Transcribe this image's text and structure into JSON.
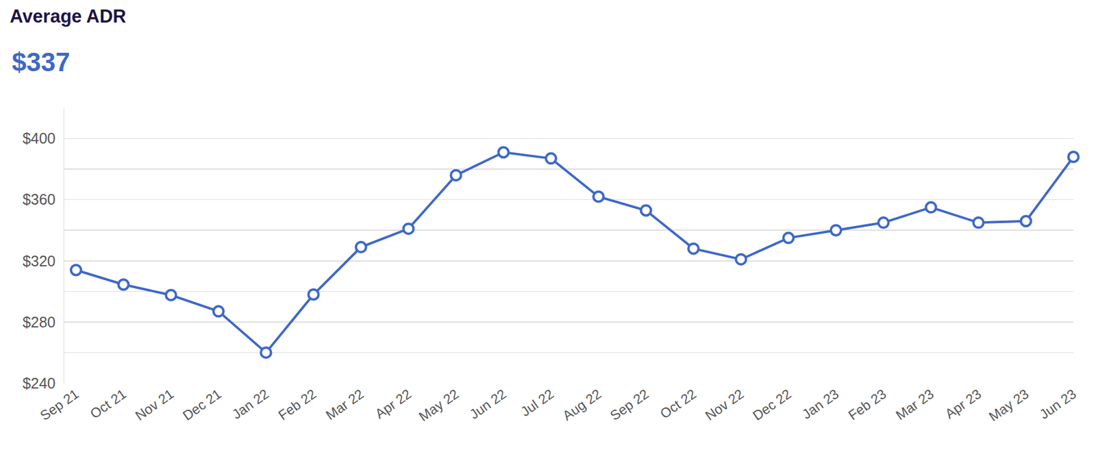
{
  "chart_data": {
    "type": "line",
    "title": "Average ADR",
    "subtitle": "$337",
    "categories": [
      "Sep 21",
      "Oct 21",
      "Nov 21",
      "Dec 21",
      "Jan 22",
      "Feb 22",
      "Mar 22",
      "Apr 22",
      "May 22",
      "Jun 22",
      "Jul 22",
      "Aug 22",
      "Sep 22",
      "Oct 22",
      "Nov 22",
      "Dec 22",
      "Jan 23",
      "Feb 23",
      "Mar 23",
      "Apr 23",
      "May 23",
      "Jun 23"
    ],
    "values": [
      314,
      304.5,
      297.6,
      287,
      260,
      298,
      329,
      341,
      376,
      391,
      387,
      362,
      353,
      328,
      321,
      335,
      340,
      345,
      355,
      345,
      346,
      388
    ],
    "color": "#3d68c8",
    "marker": "circle",
    "ylim": [
      240,
      420
    ],
    "yticks": [
      {
        "value": 240,
        "label": "$240"
      },
      {
        "value": 280,
        "label": "$280"
      },
      {
        "value": 320,
        "label": "$320"
      },
      {
        "value": 360,
        "label": "$360"
      },
      {
        "value": 400,
        "label": "$400"
      }
    ],
    "grid": true
  }
}
